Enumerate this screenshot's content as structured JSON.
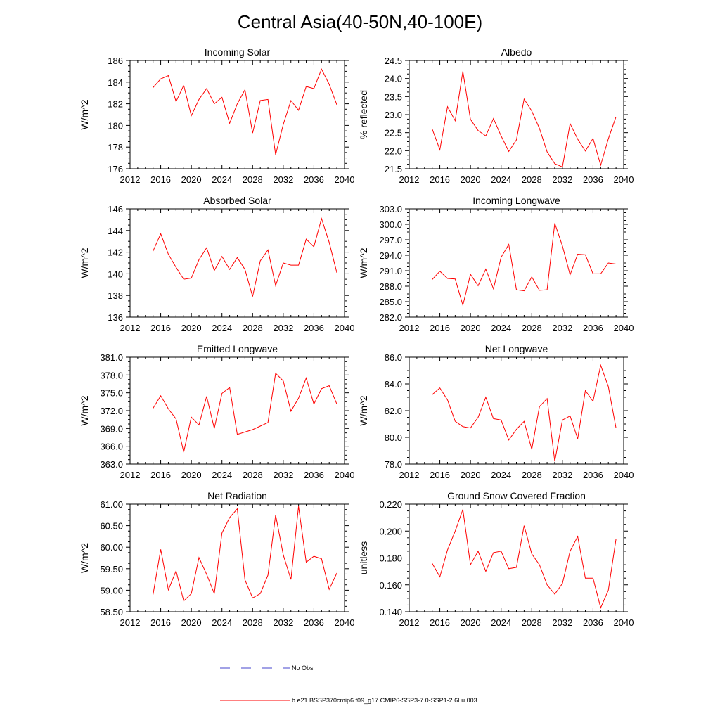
{
  "figure_title": "Central Asia(40-50N,40-100E)",
  "chart_data": [
    {
      "type": "line",
      "title": "Incoming Solar",
      "xlabel": "",
      "ylabel": "W/m^2",
      "xlim": [
        2012,
        2040
      ],
      "xticks": [
        "2012",
        "2016",
        "2020",
        "2024",
        "2028",
        "2032",
        "2036",
        "2040"
      ],
      "ylim": [
        176,
        186
      ],
      "yticks": [
        "176",
        "178",
        "180",
        "182",
        "184",
        "186"
      ],
      "x": [
        2015,
        2016,
        2017,
        2018,
        2019,
        2020,
        2021,
        2022,
        2023,
        2024,
        2025,
        2026,
        2027,
        2028,
        2029,
        2030,
        2031,
        2032,
        2033,
        2034,
        2035,
        2036,
        2037,
        2038,
        2039
      ],
      "series": [
        {
          "name": "b.e21.BSSP370cmip6.f09_g17.CMIP6-SSP3-7.0-SSP1-2.6Lu.003",
          "color": "#ff0000",
          "values": [
            183.5,
            184.3,
            184.6,
            182.2,
            183.7,
            180.9,
            182.4,
            183.4,
            182.0,
            182.6,
            180.2,
            182.0,
            183.3,
            179.3,
            182.3,
            182.4,
            177.3,
            180.1,
            182.3,
            181.4,
            183.6,
            183.4,
            185.2,
            183.8,
            181.9
          ]
        }
      ]
    },
    {
      "type": "line",
      "title": "Albedo",
      "xlabel": "",
      "ylabel": "% reflected",
      "xlim": [
        2012,
        2040
      ],
      "xticks": [
        "2012",
        "2016",
        "2020",
        "2024",
        "2028",
        "2032",
        "2036",
        "2040"
      ],
      "ylim": [
        21.5,
        24.5
      ],
      "yticks": [
        "21.5",
        "22.0",
        "22.5",
        "23.0",
        "23.5",
        "24.0",
        "24.5"
      ],
      "x": [
        2015,
        2016,
        2017,
        2018,
        2019,
        2020,
        2021,
        2022,
        2023,
        2024,
        2025,
        2026,
        2027,
        2028,
        2029,
        2030,
        2031,
        2032,
        2033,
        2034,
        2035,
        2036,
        2037,
        2038,
        2039
      ],
      "series": [
        {
          "name": "b.e21.BSSP370cmip6.f09_g17.CMIP6-SSP3-7.0-SSP1-2.6Lu.003",
          "color": "#ff0000",
          "values": [
            22.6,
            22.03,
            23.22,
            22.83,
            24.2,
            22.87,
            22.56,
            22.41,
            22.89,
            22.41,
            21.98,
            22.3,
            23.43,
            23.1,
            22.62,
            21.97,
            21.64,
            21.55,
            22.75,
            22.32,
            21.99,
            22.34,
            21.6,
            22.33,
            22.94
          ]
        }
      ]
    },
    {
      "type": "line",
      "title": "Absorbed Solar",
      "xlabel": "",
      "ylabel": "W/m^2",
      "xlim": [
        2012,
        2040
      ],
      "xticks": [
        "2012",
        "2016",
        "2020",
        "2024",
        "2028",
        "2032",
        "2036",
        "2040"
      ],
      "ylim": [
        136,
        146
      ],
      "yticks": [
        "136",
        "138",
        "140",
        "142",
        "144",
        "146"
      ],
      "x": [
        2015,
        2016,
        2017,
        2018,
        2019,
        2020,
        2021,
        2022,
        2023,
        2024,
        2025,
        2026,
        2027,
        2028,
        2029,
        2030,
        2031,
        2032,
        2033,
        2034,
        2035,
        2036,
        2037,
        2038,
        2039
      ],
      "series": [
        {
          "name": "b.e21.BSSP370cmip6.f09_g17.CMIP6-SSP3-7.0-SSP1-2.6Lu.003",
          "color": "#ff0000",
          "values": [
            142.1,
            143.7,
            141.8,
            140.6,
            139.5,
            139.6,
            141.3,
            142.4,
            140.3,
            141.6,
            140.4,
            141.5,
            140.4,
            137.9,
            141.2,
            142.2,
            138.9,
            141.0,
            140.8,
            140.8,
            143.2,
            142.5,
            145.1,
            142.9,
            140.1
          ]
        }
      ]
    },
    {
      "type": "line",
      "title": "Incoming Longwave",
      "xlabel": "",
      "ylabel": "W/m^2",
      "xlim": [
        2012,
        2040
      ],
      "xticks": [
        "2012",
        "2016",
        "2020",
        "2024",
        "2028",
        "2032",
        "2036",
        "2040"
      ],
      "ylim": [
        282.0,
        303.0
      ],
      "yticks": [
        "282.0",
        "285.0",
        "288.0",
        "291.0",
        "294.0",
        "297.0",
        "300.0",
        "303.0"
      ],
      "x": [
        2015,
        2016,
        2017,
        2018,
        2019,
        2020,
        2021,
        2022,
        2023,
        2024,
        2025,
        2026,
        2027,
        2028,
        2029,
        2030,
        2031,
        2032,
        2033,
        2034,
        2035,
        2036,
        2037,
        2038,
        2039
      ],
      "series": [
        {
          "name": "b.e21.BSSP370cmip6.f09_g17.CMIP6-SSP3-7.0-SSP1-2.6Lu.003",
          "color": "#ff0000",
          "values": [
            289.3,
            290.9,
            289.5,
            289.4,
            284.3,
            290.3,
            288.1,
            291.3,
            287.5,
            293.6,
            296.1,
            287.3,
            287.1,
            289.8,
            287.2,
            287.3,
            300.2,
            295.8,
            290.2,
            294.2,
            294.1,
            290.4,
            290.4,
            292.5,
            292.3
          ]
        }
      ]
    },
    {
      "type": "line",
      "title": "Emitted Longwave",
      "xlabel": "",
      "ylabel": "W/m^2",
      "xlim": [
        2012,
        2040
      ],
      "xticks": [
        "2012",
        "2016",
        "2020",
        "2024",
        "2028",
        "2032",
        "2036",
        "2040"
      ],
      "ylim": [
        363.0,
        381.0
      ],
      "yticks": [
        "363.0",
        "366.0",
        "369.0",
        "372.0",
        "375.0",
        "378.0",
        "381.0"
      ],
      "x": [
        2015,
        2016,
        2017,
        2018,
        2019,
        2020,
        2021,
        2022,
        2023,
        2024,
        2025,
        2026,
        2027,
        2028,
        2029,
        2030,
        2031,
        2032,
        2033,
        2034,
        2035,
        2036,
        2037,
        2038,
        2039
      ],
      "series": [
        {
          "name": "b.e21.BSSP370cmip6.f09_g17.CMIP6-SSP3-7.0-SSP1-2.6Lu.003",
          "color": "#ff0000",
          "values": [
            372.4,
            374.5,
            372.3,
            370.6,
            365.0,
            370.9,
            369.6,
            374.4,
            369.0,
            374.9,
            375.9,
            368.0,
            368.4,
            368.8,
            369.4,
            370.0,
            378.3,
            377.0,
            371.9,
            374.1,
            377.5,
            373.1,
            375.7,
            376.2,
            373.1
          ]
        }
      ]
    },
    {
      "type": "line",
      "title": "Net Longwave",
      "xlabel": "",
      "ylabel": "W/m^2",
      "xlim": [
        2012,
        2040
      ],
      "xticks": [
        "2012",
        "2016",
        "2020",
        "2024",
        "2028",
        "2032",
        "2036",
        "2040"
      ],
      "ylim": [
        78.0,
        86.0
      ],
      "yticks": [
        "78.0",
        "80.0",
        "82.0",
        "84.0",
        "86.0"
      ],
      "x": [
        2015,
        2016,
        2017,
        2018,
        2019,
        2020,
        2021,
        2022,
        2023,
        2024,
        2025,
        2026,
        2027,
        2028,
        2029,
        2030,
        2031,
        2032,
        2033,
        2034,
        2035,
        2036,
        2037,
        2038,
        2039
      ],
      "series": [
        {
          "name": "b.e21.BSSP370cmip6.f09_g17.CMIP6-SSP3-7.0-SSP1-2.6Lu.003",
          "color": "#ff0000",
          "values": [
            83.2,
            83.7,
            82.8,
            81.2,
            80.8,
            80.7,
            81.5,
            83.0,
            81.4,
            81.3,
            79.8,
            80.6,
            81.2,
            79.1,
            82.3,
            82.9,
            78.2,
            81.3,
            81.6,
            79.9,
            83.5,
            82.7,
            85.4,
            83.8,
            80.7
          ]
        }
      ]
    },
    {
      "type": "line",
      "title": "Net Radiation",
      "xlabel": "",
      "ylabel": "W/m^2",
      "xlim": [
        2012,
        2040
      ],
      "xticks": [
        "2012",
        "2016",
        "2020",
        "2024",
        "2028",
        "2032",
        "2036",
        "2040"
      ],
      "ylim": [
        58.5,
        61.0
      ],
      "yticks": [
        "58.50",
        "59.00",
        "59.50",
        "60.00",
        "60.50",
        "61.00"
      ],
      "x": [
        2015,
        2016,
        2017,
        2018,
        2019,
        2020,
        2021,
        2022,
        2023,
        2024,
        2025,
        2026,
        2027,
        2028,
        2029,
        2030,
        2031,
        2032,
        2033,
        2034,
        2035,
        2036,
        2037,
        2038,
        2039
      ],
      "series": [
        {
          "name": "b.e21.BSSP370cmip6.f09_g17.CMIP6-SSP3-7.0-SSP1-2.6Lu.003",
          "color": "#ff0000",
          "values": [
            58.9,
            59.95,
            59.01,
            59.45,
            58.75,
            58.92,
            59.76,
            59.37,
            58.92,
            60.33,
            60.69,
            60.89,
            59.24,
            58.82,
            58.92,
            59.35,
            60.75,
            59.82,
            59.25,
            60.95,
            59.65,
            59.79,
            59.73,
            59.02,
            59.4
          ]
        }
      ]
    },
    {
      "type": "line",
      "title": "Ground Snow Covered Fraction",
      "xlabel": "",
      "ylabel": "unitless",
      "xlim": [
        2012,
        2040
      ],
      "xticks": [
        "2012",
        "2016",
        "2020",
        "2024",
        "2028",
        "2032",
        "2036",
        "2040"
      ],
      "ylim": [
        0.14,
        0.22
      ],
      "yticks": [
        "0.140",
        "0.160",
        "0.180",
        "0.200",
        "0.220"
      ],
      "x": [
        2015,
        2016,
        2017,
        2018,
        2019,
        2020,
        2021,
        2022,
        2023,
        2024,
        2025,
        2026,
        2027,
        2028,
        2029,
        2030,
        2031,
        2032,
        2033,
        2034,
        2035,
        2036,
        2037,
        2038,
        2039
      ],
      "series": [
        {
          "name": "b.e21.BSSP370cmip6.f09_g17.CMIP6-SSP3-7.0-SSP1-2.6Lu.003",
          "color": "#ff0000",
          "values": [
            0.176,
            0.166,
            0.186,
            0.2,
            0.216,
            0.175,
            0.185,
            0.17,
            0.184,
            0.185,
            0.172,
            0.173,
            0.204,
            0.183,
            0.175,
            0.16,
            0.153,
            0.161,
            0.185,
            0.196,
            0.165,
            0.165,
            0.143,
            0.156,
            0.194
          ]
        }
      ]
    }
  ],
  "legend": [
    {
      "label": "No Obs",
      "color": "#4444cc",
      "style": "dashed"
    },
    {
      "label": "b.e21.BSSP370cmip6.f09_g17.CMIP6-SSP3-7.0-SSP1-2.6Lu.003",
      "color": "#ff0000",
      "style": "solid"
    }
  ]
}
